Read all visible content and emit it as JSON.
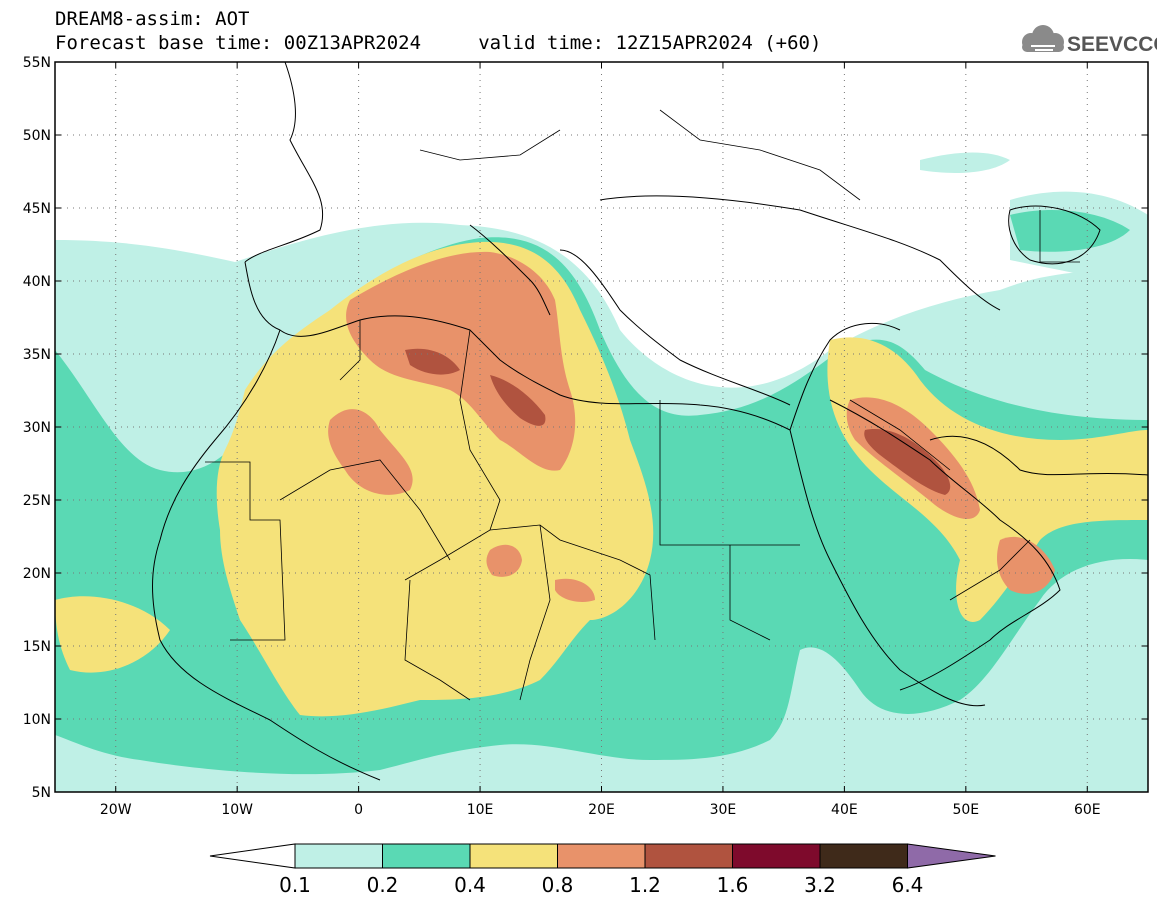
{
  "title": {
    "line1": "DREAM8-assim: AOT",
    "line2": "Forecast base time: 00Z13APR2024     valid time: 12Z15APR2024 (+60)"
  },
  "logo": {
    "text": "SEEVCCC",
    "icon": "cloud-icon"
  },
  "map": {
    "projection": "cylindrical",
    "lon_range": [
      -25,
      65
    ],
    "lat_range": [
      5,
      55
    ],
    "lat_ticks": [
      {
        "value": 55,
        "label": "55N"
      },
      {
        "value": 50,
        "label": "50N"
      },
      {
        "value": 45,
        "label": "45N"
      },
      {
        "value": 40,
        "label": "40N"
      },
      {
        "value": 35,
        "label": "35N"
      },
      {
        "value": 30,
        "label": "30N"
      },
      {
        "value": 25,
        "label": "25N"
      },
      {
        "value": 20,
        "label": "20N"
      },
      {
        "value": 15,
        "label": "15N"
      },
      {
        "value": 10,
        "label": "10N"
      },
      {
        "value": 5,
        "label": "5N"
      }
    ],
    "lon_ticks": [
      {
        "value": -20,
        "label": "20W"
      },
      {
        "value": -10,
        "label": "10W"
      },
      {
        "value": 0,
        "label": "0"
      },
      {
        "value": 10,
        "label": "10E"
      },
      {
        "value": 20,
        "label": "20E"
      },
      {
        "value": 30,
        "label": "30E"
      },
      {
        "value": 40,
        "label": "40E"
      },
      {
        "value": 50,
        "label": "50E"
      },
      {
        "value": 60,
        "label": "60E"
      }
    ],
    "grid": "dotted"
  },
  "colorbar": {
    "levels": [
      "0.1",
      "0.2",
      "0.4",
      "0.8",
      "1.2",
      "1.6",
      "3.2",
      "6.4"
    ],
    "colors": [
      "#ffffff",
      "#bff0e6",
      "#5ad9b4",
      "#f5e27a",
      "#e8926a",
      "#b0533f",
      "#7e0a2c",
      "#3f2a1a",
      "#8f6aa8"
    ]
  }
}
